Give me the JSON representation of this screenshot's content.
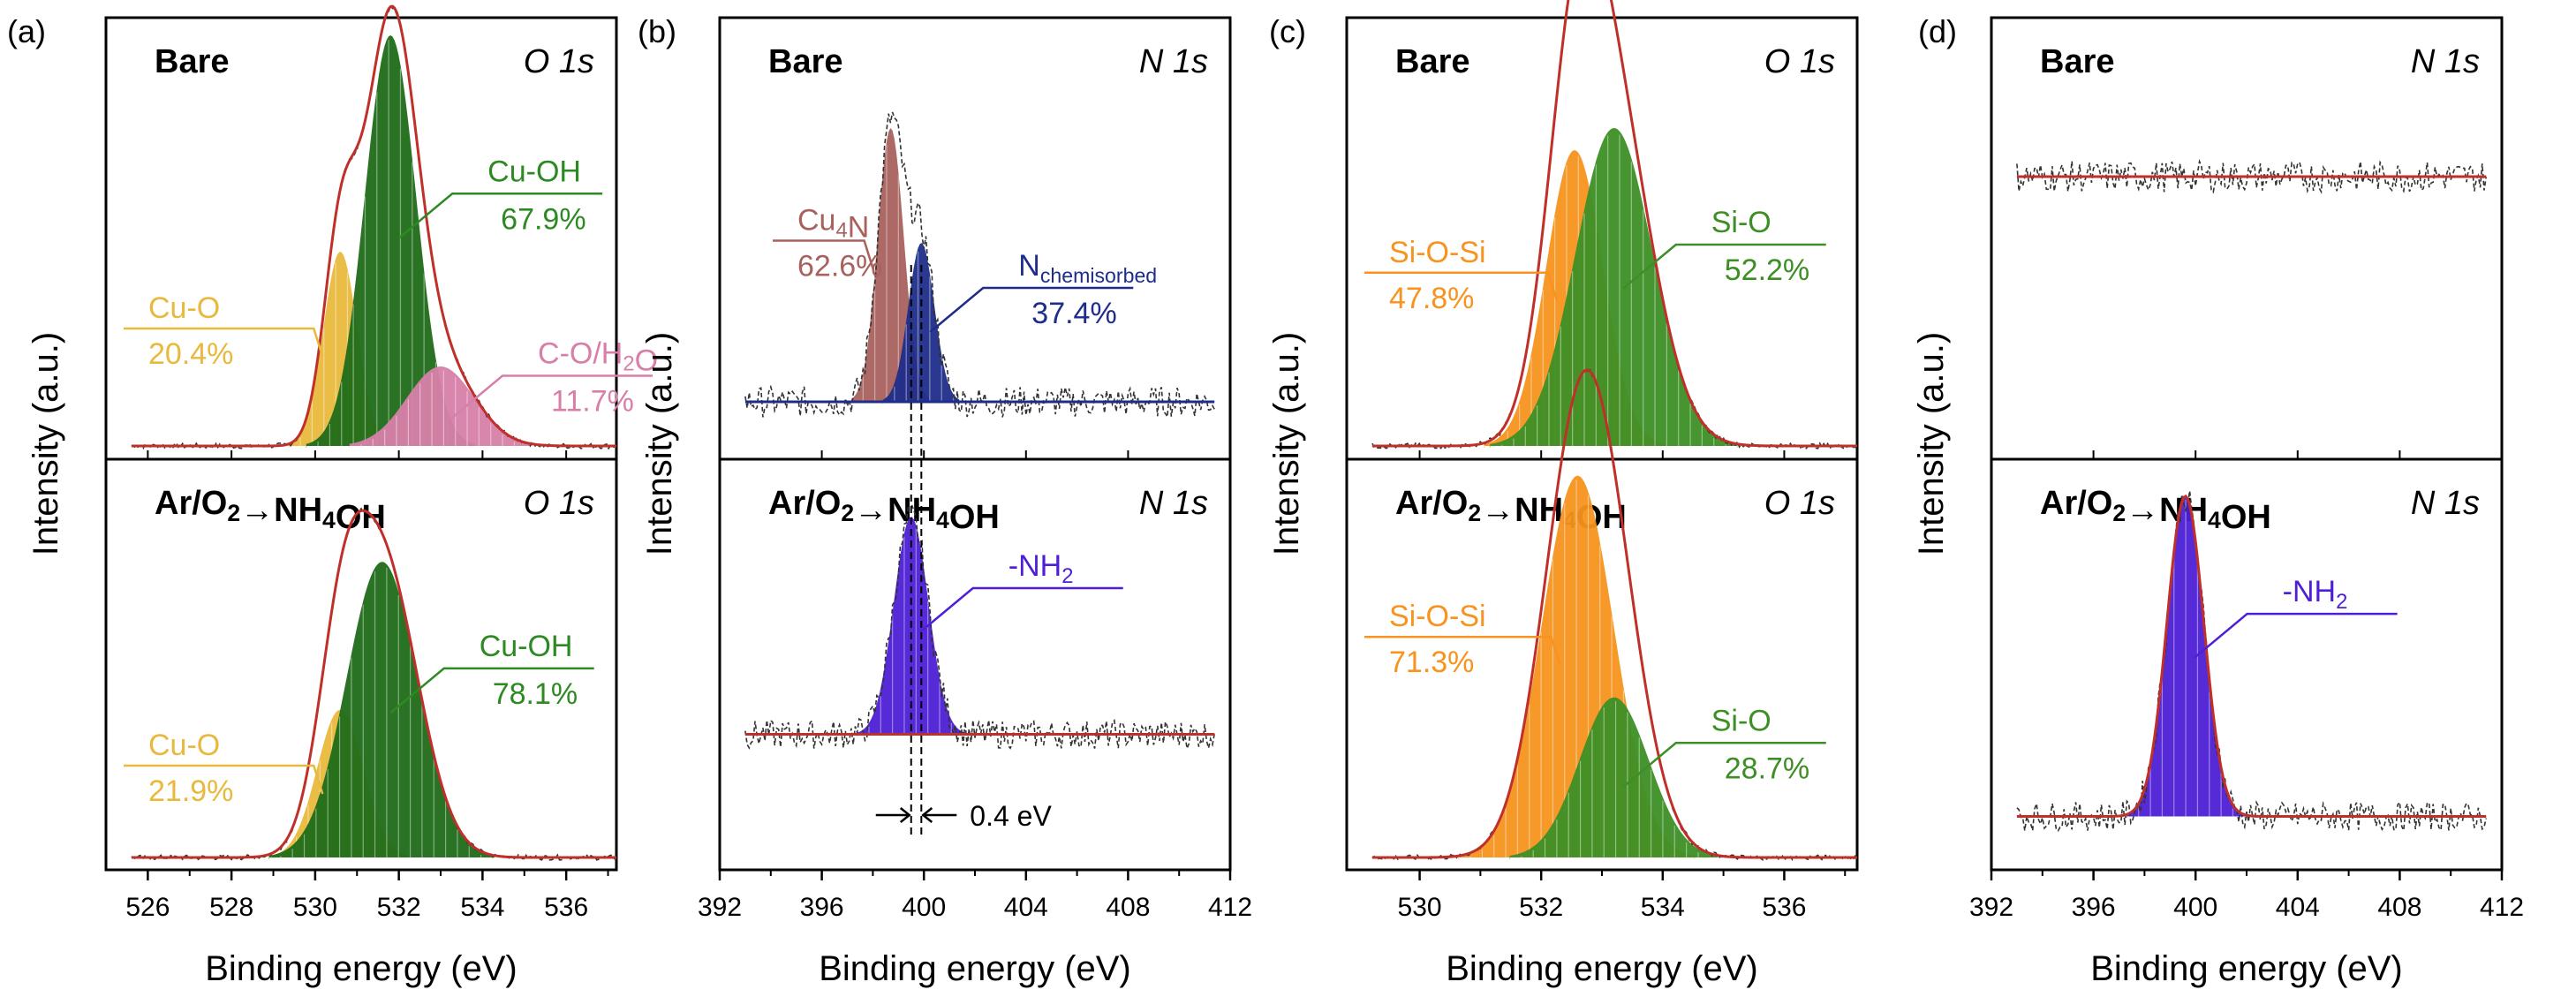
{
  "chart_data": [
    {
      "panel": "(a)",
      "type": "line",
      "xlabel": "Binding energy (eV)",
      "ylabel": "Intensity (a.u.)",
      "xlim": [
        525,
        537.2
      ],
      "xticks": [
        526,
        528,
        530,
        532,
        534,
        536
      ],
      "reversed_x": false,
      "subplots": [
        {
          "title": "Bare",
          "core_level": "O 1s",
          "background": 0.03,
          "envelope": true,
          "peaks": [
            {
              "label": "Cu-O",
              "pct": "20.4%",
              "center": 530.6,
              "fwhm": 0.95,
              "height": 0.44,
              "color": "#e8b93c"
            },
            {
              "label": "Cu-OH",
              "pct": "67.9%",
              "center": 531.8,
              "fwhm": 1.45,
              "height": 0.93,
              "color": "#1f6b19"
            },
            {
              "label": "C-O/H2O",
              "pct": "11.7%",
              "center": 533.0,
              "fwhm": 1.9,
              "height": 0.18,
              "color": "#d77fa9"
            }
          ]
        },
        {
          "title": "Ar/O2→NH4OH",
          "core_level": "O 1s",
          "background": 0.03,
          "envelope": true,
          "peaks": [
            {
              "label": "Cu-O",
              "pct": "21.9%",
              "center": 530.6,
              "fwhm": 1.3,
              "height": 0.36,
              "color": "#e8b93c"
            },
            {
              "label": "Cu-OH",
              "pct": "78.1%",
              "center": 531.6,
              "fwhm": 2.0,
              "height": 0.72,
              "color": "#1f6b19"
            }
          ]
        }
      ]
    },
    {
      "panel": "(b)",
      "type": "line",
      "xlabel": "Binding energy (eV)",
      "ylabel": "Intensity (a.u.)",
      "xlim": [
        392,
        412
      ],
      "xticks": [
        392,
        396,
        400,
        404,
        408,
        412
      ],
      "reversed_x": false,
      "subplots": [
        {
          "title": "Bare",
          "core_level": "N 1s",
          "background": 0.13,
          "envelope": false,
          "noisy": true,
          "peaks": [
            {
              "label": "Cu4N",
              "pct": "62.6%",
              "center": 398.7,
              "fwhm": 1.2,
              "height": 0.62,
              "color": "#a8615d"
            },
            {
              "label": "Nchemisorbed",
              "pct": "37.4%",
              "center": 399.9,
              "fwhm": 1.2,
              "height": 0.36,
              "color": "#1f2d8a"
            }
          ]
        },
        {
          "title": "Ar/O2→NH4OH",
          "core_level": "N 1s",
          "background": 0.33,
          "envelope": false,
          "noisy": true,
          "peaks": [
            {
              "label": "-NH2",
              "pct": "",
              "center": 399.5,
              "fwhm": 1.6,
              "height": 0.53,
              "color": "#4e1fd6"
            }
          ],
          "shift_annotation": "0.4 eV"
        }
      ]
    },
    {
      "panel": "(c)",
      "type": "line",
      "xlabel": "Binding energy (eV)",
      "ylabel": "Intensity (a.u.)",
      "xlim": [
        528.8,
        537.2
      ],
      "xticks": [
        530,
        532,
        534,
        536
      ],
      "reversed_x": false,
      "subplots": [
        {
          "title": "Bare",
          "core_level": "O 1s",
          "background": 0.03,
          "envelope": true,
          "peaks": [
            {
              "label": "Si-O-Si",
              "pct": "47.8%",
              "center": 532.55,
              "fwhm": 1.1,
              "height": 0.67,
              "color": "#f7931e"
            },
            {
              "label": "Si-O",
              "pct": "52.2%",
              "center": 533.2,
              "fwhm": 1.5,
              "height": 0.72,
              "color": "#3d8f25"
            }
          ]
        },
        {
          "title": "Ar/O2→NH4OH",
          "core_level": "O 1s",
          "background": 0.03,
          "envelope": true,
          "peaks": [
            {
              "label": "Si-O-Si",
              "pct": "71.3%",
              "center": 532.6,
              "fwhm": 1.4,
              "height": 0.93,
              "color": "#f7931e"
            },
            {
              "label": "Si-O",
              "pct": "28.7%",
              "center": 533.2,
              "fwhm": 1.35,
              "height": 0.39,
              "color": "#3d8f25"
            }
          ]
        }
      ]
    },
    {
      "panel": "(d)",
      "type": "line",
      "xlabel": "Binding energy (eV)",
      "ylabel": "Intensity (a.u.)",
      "xlim": [
        392,
        412
      ],
      "xticks": [
        392,
        396,
        400,
        404,
        408,
        412
      ],
      "reversed_x": false,
      "subplots": [
        {
          "title": "Bare",
          "core_level": "N 1s",
          "background": 0.64,
          "envelope": true,
          "noisy": true,
          "peaks": []
        },
        {
          "title": "Ar/O2→NH4OH",
          "core_level": "N 1s",
          "background": 0.13,
          "envelope": true,
          "noisy": true,
          "peaks": [
            {
              "label": "-NH2",
              "pct": "",
              "center": 399.6,
              "fwhm": 1.7,
              "height": 0.78,
              "color": "#4e1fd6"
            }
          ]
        }
      ]
    }
  ]
}
